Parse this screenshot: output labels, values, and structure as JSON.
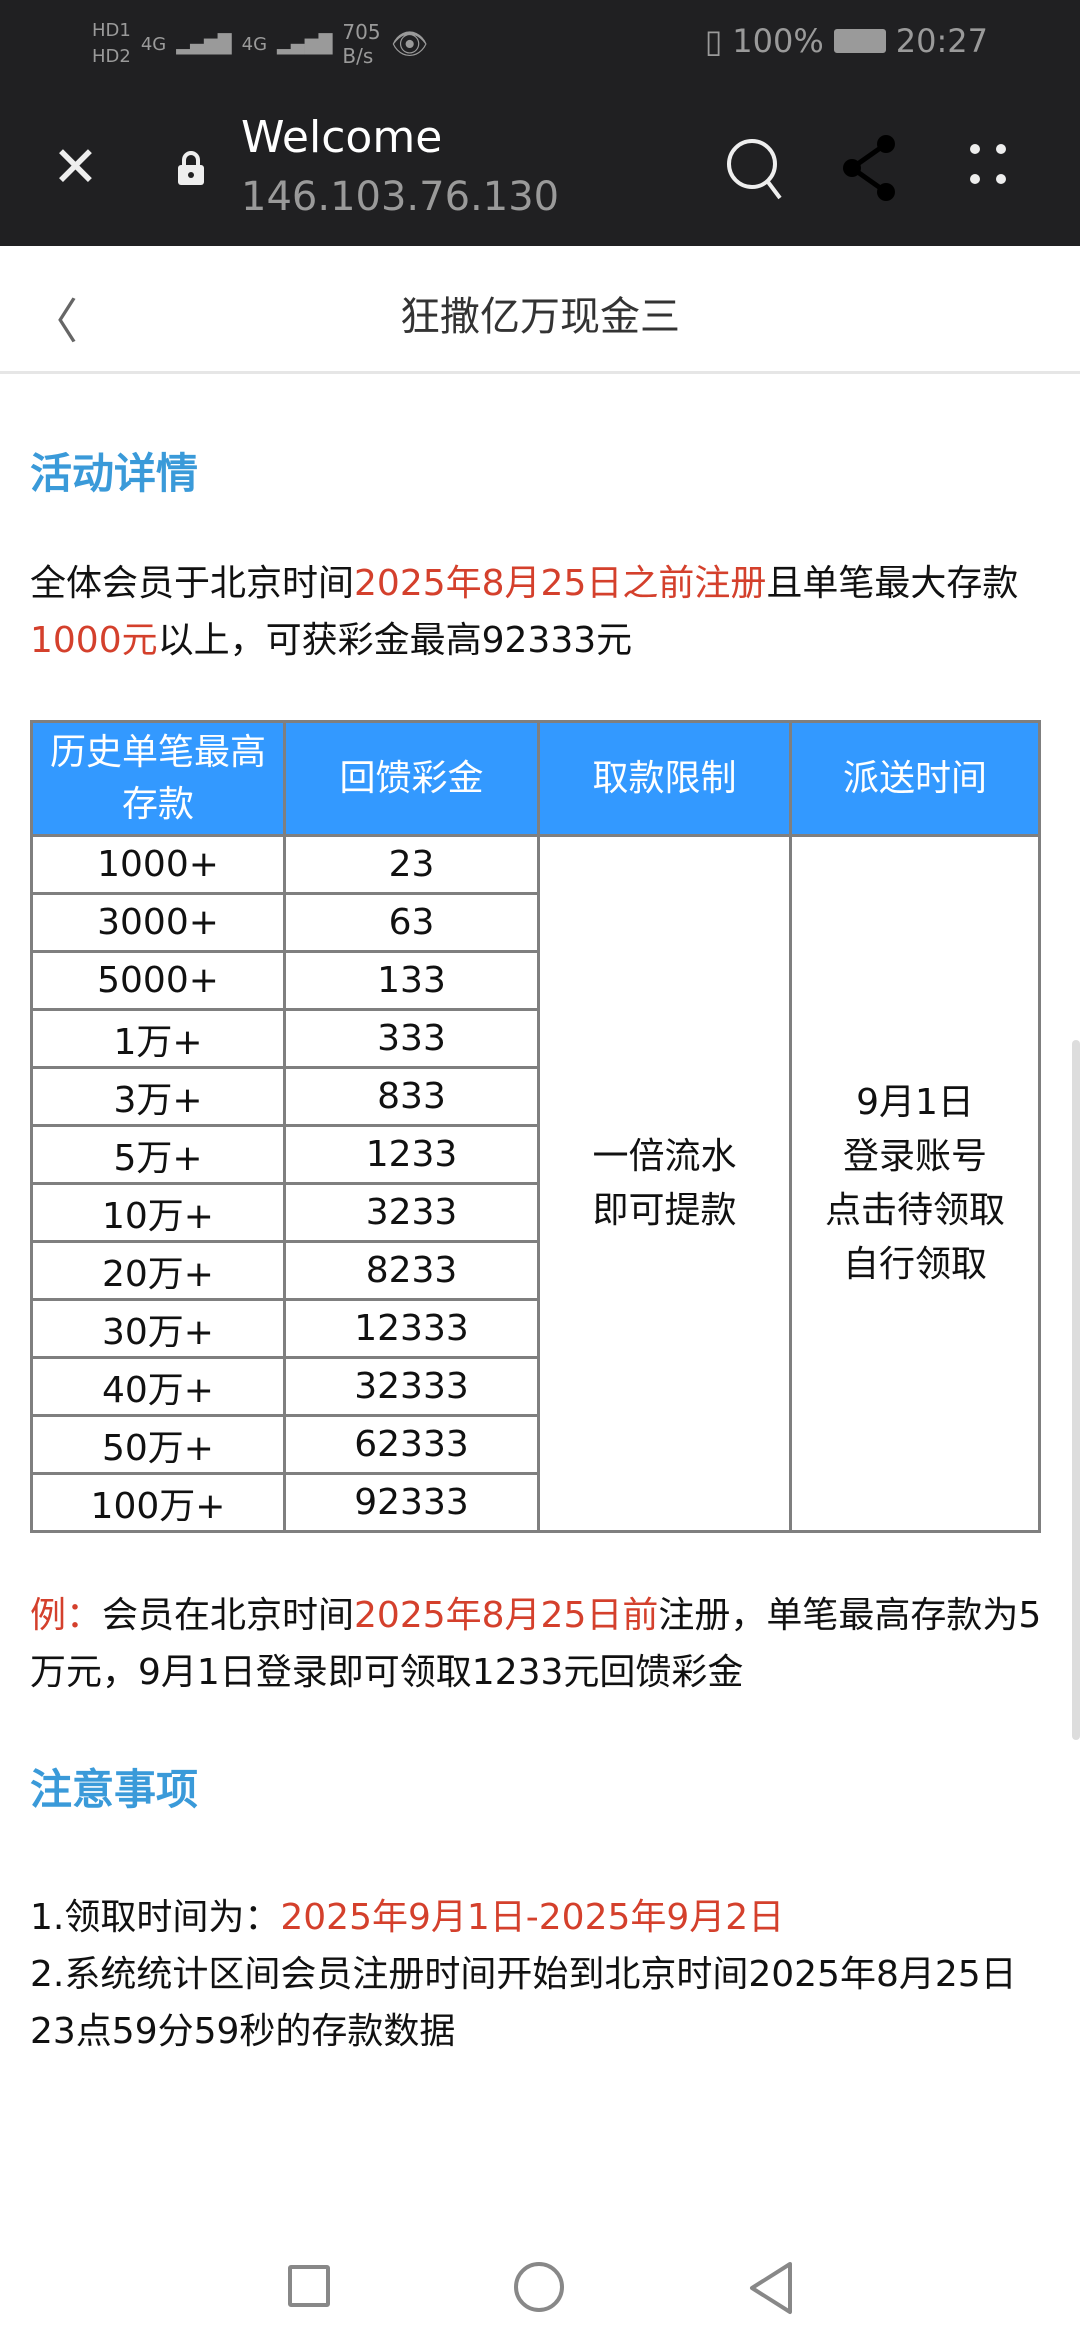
{
  "status_bar": {
    "sim1": "HD1",
    "sim2": "HD2",
    "net1": "4G",
    "net2": "4G",
    "speed_value": "705",
    "speed_unit": "B/s",
    "battery": "100%",
    "time": "20:27"
  },
  "browser": {
    "title": "Welcome",
    "url": "146.103.76.130"
  },
  "header": {
    "title": "狂撒亿万现金三"
  },
  "section1": {
    "title": "活动详情",
    "intro": [
      {
        "t": "全体会员于北京时间",
        "red": false
      },
      {
        "t": "2025年8月25日之前注册",
        "red": true
      },
      {
        "t": "且单笔最大存款",
        "red": false
      },
      {
        "t": "1000元",
        "red": true
      },
      {
        "t": "以上，可获彩金最高92333元",
        "red": false
      }
    ]
  },
  "table": {
    "headers": [
      "历史单笔最高存款",
      "回馈彩金",
      "取款限制",
      "派送时间"
    ],
    "rows": [
      [
        "1000+",
        "23"
      ],
      [
        "3000+",
        "63"
      ],
      [
        "5000+",
        "133"
      ],
      [
        "1万+",
        "333"
      ],
      [
        "3万+",
        "833"
      ],
      [
        "5万+",
        "1233"
      ],
      [
        "10万+",
        "3233"
      ],
      [
        "20万+",
        "8233"
      ],
      [
        "30万+",
        "12333"
      ],
      [
        "40万+",
        "32333"
      ],
      [
        "50万+",
        "62333"
      ],
      [
        "100万+",
        "92333"
      ]
    ],
    "withdraw_limit": [
      "一倍流水",
      "即可提款"
    ],
    "delivery_time": [
      "9月1日",
      "登录账号",
      "点击待领取",
      "自行领取"
    ]
  },
  "example": {
    "label": "例：",
    "p1": "会员在北京时间",
    "date": "2025年8月25日前",
    "p2": "注册，单笔最高存款为5万元，9月1日登录即可领取1233元回馈彩金"
  },
  "section2": {
    "title": "注意事项",
    "item1_label": "1.领取时间为：",
    "item1_value": "2025年9月1日-2025年9月2日",
    "item2": "2.系统统计区间会员注册时间开始到北京时间2025年8月25日23点59分59秒的存款数据"
  },
  "colors": {
    "heading": "#3a9ad9",
    "highlight": "#d4402c",
    "table_header": "#3399ff"
  }
}
